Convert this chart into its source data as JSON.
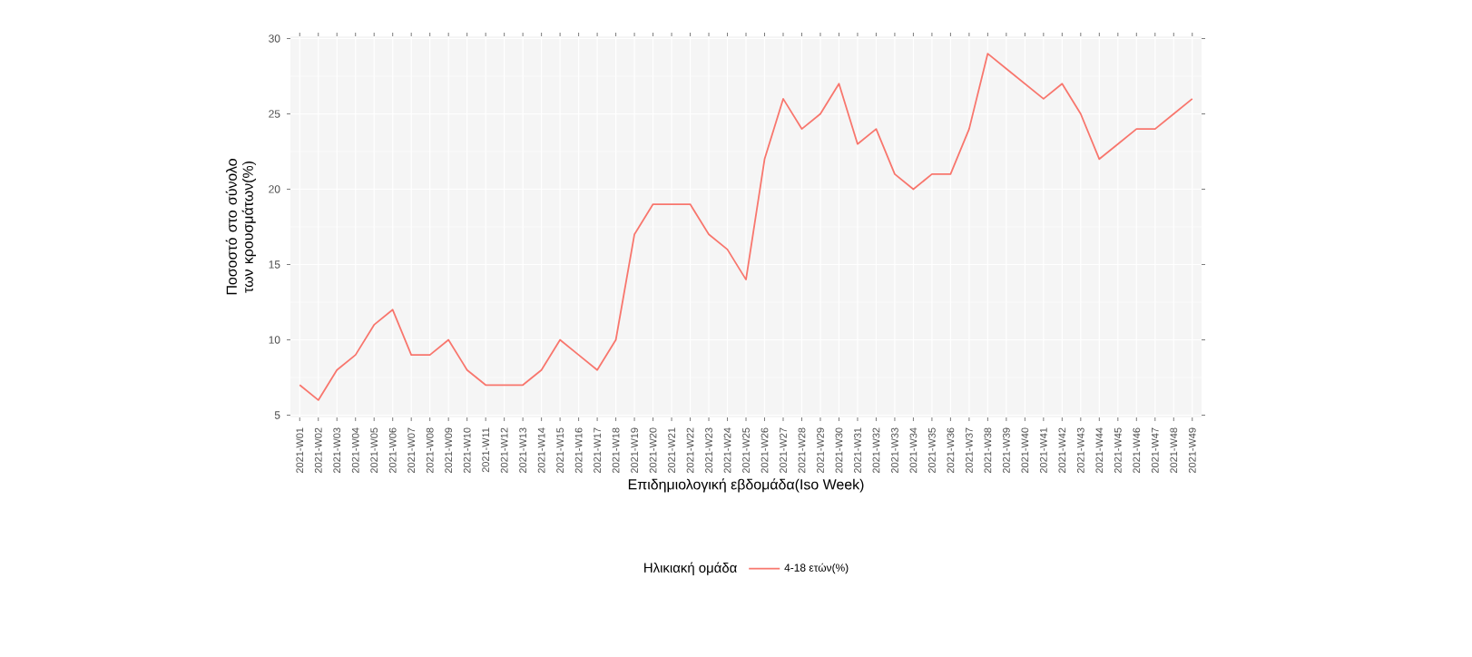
{
  "chart_data": {
    "type": "line",
    "xlabel": "Επιδημιολογική εβδομάδα(Iso Week)",
    "ylabel": "Ποσοστό στο σύνολο των κρουσμάτων(%)",
    "legend_title": "Ηλικιακή ομάδα",
    "categories": [
      "2021-W01",
      "2021-W02",
      "2021-W03",
      "2021-W04",
      "2021-W05",
      "2021-W06",
      "2021-W07",
      "2021-W08",
      "2021-W09",
      "2021-W10",
      "2021-W11",
      "2021-W12",
      "2021-W13",
      "2021-W14",
      "2021-W15",
      "2021-W16",
      "2021-W17",
      "2021-W18",
      "2021-W19",
      "2021-W20",
      "2021-W21",
      "2021-W22",
      "2021-W23",
      "2021-W24",
      "2021-W25",
      "2021-W26",
      "2021-W27",
      "2021-W28",
      "2021-W29",
      "2021-W30",
      "2021-W31",
      "2021-W32",
      "2021-W33",
      "2021-W34",
      "2021-W35",
      "2021-W36",
      "2021-W37",
      "2021-W38",
      "2021-W39",
      "2021-W40",
      "2021-W41",
      "2021-W42",
      "2021-W43",
      "2021-W44",
      "2021-W45",
      "2021-W46",
      "2021-W47",
      "2021-W48",
      "2021-W49"
    ],
    "series": [
      {
        "name": "4-18 ετών(%)",
        "color": "#f8766d",
        "values": [
          7,
          6,
          8,
          9,
          11,
          12,
          9,
          9,
          10,
          8,
          7,
          7,
          7,
          8,
          10,
          9,
          8,
          10,
          17,
          19,
          19,
          19,
          17,
          16,
          14,
          22,
          26,
          24,
          25,
          27,
          23,
          24,
          21,
          20,
          21,
          21,
          24,
          29,
          28,
          27,
          26,
          27,
          25,
          22,
          23,
          24,
          24,
          25,
          26
        ]
      }
    ],
    "ylim": [
      4.85,
      30.15
    ],
    "yticks": [
      5,
      10,
      15,
      20,
      25,
      30
    ],
    "grid": true,
    "legend": "bottom",
    "marker": "none",
    "line_style": "solid"
  }
}
